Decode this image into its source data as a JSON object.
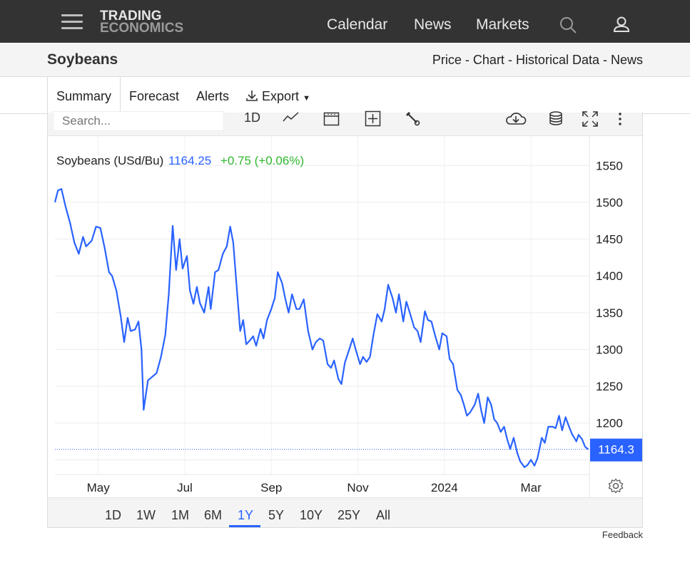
{
  "header": {
    "logo_line1": "TRADING",
    "logo_line2": "ECONOMICS",
    "nav": [
      "Calendar",
      "News",
      "Markets"
    ],
    "icons": [
      "menu-icon",
      "search-icon",
      "user-icon"
    ]
  },
  "title": "Soybeans",
  "breadcrumbs": {
    "price": "Price",
    "chart": "Chart",
    "historical": "Historical Data",
    "news": "News",
    "separator": "-"
  },
  "tabs": {
    "summary": "Summary",
    "forecast": "Forecast",
    "alerts": "Alerts",
    "export": "Export"
  },
  "toolbar": {
    "search_placeholder": "Search...",
    "interval": "1D",
    "icons": [
      "line-chart-icon",
      "calendar-icon",
      "add-compare-icon",
      "wrench-icon",
      "download-icon",
      "database-icon",
      "fullscreen-icon",
      "more-icon"
    ]
  },
  "legend": {
    "name": "Soybeans (USd/Bu)",
    "price": "1164.25",
    "change": "+0.75 (+0.06%)"
  },
  "colors": {
    "line": "#2962ff",
    "change": "#2eb82e",
    "price": "#2962ff",
    "navbar": "#333333"
  },
  "ranges": [
    "1D",
    "1W",
    "1M",
    "6M",
    "1Y",
    "5Y",
    "10Y",
    "25Y",
    "All"
  ],
  "active_range": "1Y",
  "feedback": "Feedback",
  "chart_data": {
    "type": "line",
    "title": "Soybeans (USd/Bu)",
    "ylim": [
      1130,
      1590
    ],
    "y_ticks": [
      1200,
      1250,
      1300,
      1350,
      1400,
      1450,
      1500,
      1550
    ],
    "x_ticks": [
      "May",
      "Jul",
      "Sep",
      "Nov",
      "2024",
      "Mar"
    ],
    "x_tick_months": [
      1.0,
      3.0,
      5.0,
      7.0,
      9.0,
      11.0
    ],
    "last_value_label": "1164.3",
    "last_value": 1164.3,
    "grid": true,
    "series": [
      {
        "name": "Soybeans",
        "points": [
          [
            0.0,
            1500
          ],
          [
            0.07,
            1516
          ],
          [
            0.15,
            1518
          ],
          [
            0.25,
            1493
          ],
          [
            0.35,
            1472
          ],
          [
            0.45,
            1445
          ],
          [
            0.55,
            1430
          ],
          [
            0.65,
            1453
          ],
          [
            0.72,
            1440
          ],
          [
            0.85,
            1448
          ],
          [
            0.95,
            1467
          ],
          [
            1.05,
            1465
          ],
          [
            1.15,
            1438
          ],
          [
            1.25,
            1405
          ],
          [
            1.32,
            1400
          ],
          [
            1.42,
            1380
          ],
          [
            1.52,
            1345
          ],
          [
            1.6,
            1310
          ],
          [
            1.68,
            1343
          ],
          [
            1.75,
            1325
          ],
          [
            1.85,
            1327
          ],
          [
            1.93,
            1338
          ],
          [
            2.0,
            1300
          ],
          [
            2.05,
            1218
          ],
          [
            2.15,
            1258
          ],
          [
            2.25,
            1263
          ],
          [
            2.35,
            1268
          ],
          [
            2.45,
            1290
          ],
          [
            2.55,
            1320
          ],
          [
            2.63,
            1375
          ],
          [
            2.72,
            1468
          ],
          [
            2.8,
            1408
          ],
          [
            2.88,
            1450
          ],
          [
            2.95,
            1410
          ],
          [
            3.05,
            1427
          ],
          [
            3.12,
            1380
          ],
          [
            3.2,
            1362
          ],
          [
            3.28,
            1385
          ],
          [
            3.35,
            1363
          ],
          [
            3.45,
            1350
          ],
          [
            3.55,
            1385
          ],
          [
            3.6,
            1355
          ],
          [
            3.7,
            1405
          ],
          [
            3.78,
            1408
          ],
          [
            3.88,
            1430
          ],
          [
            3.97,
            1440
          ],
          [
            4.05,
            1467
          ],
          [
            4.12,
            1445
          ],
          [
            4.2,
            1385
          ],
          [
            4.28,
            1325
          ],
          [
            4.35,
            1340
          ],
          [
            4.42,
            1307
          ],
          [
            4.5,
            1312
          ],
          [
            4.58,
            1318
          ],
          [
            4.65,
            1305
          ],
          [
            4.75,
            1328
          ],
          [
            4.82,
            1315
          ],
          [
            4.9,
            1340
          ],
          [
            5.0,
            1355
          ],
          [
            5.08,
            1370
          ],
          [
            5.15,
            1405
          ],
          [
            5.25,
            1390
          ],
          [
            5.32,
            1370
          ],
          [
            5.4,
            1350
          ],
          [
            5.48,
            1375
          ],
          [
            5.58,
            1355
          ],
          [
            5.65,
            1355
          ],
          [
            5.75,
            1368
          ],
          [
            5.85,
            1325
          ],
          [
            5.95,
            1300
          ],
          [
            6.03,
            1310
          ],
          [
            6.12,
            1315
          ],
          [
            6.2,
            1312
          ],
          [
            6.3,
            1280
          ],
          [
            6.38,
            1275
          ],
          [
            6.45,
            1285
          ],
          [
            6.55,
            1260
          ],
          [
            6.62,
            1253
          ],
          [
            6.7,
            1282
          ],
          [
            6.8,
            1300
          ],
          [
            6.88,
            1315
          ],
          [
            6.95,
            1300
          ],
          [
            7.05,
            1280
          ],
          [
            7.12,
            1290
          ],
          [
            7.2,
            1283
          ],
          [
            7.28,
            1290
          ],
          [
            7.36,
            1320
          ],
          [
            7.45,
            1348
          ],
          [
            7.55,
            1338
          ],
          [
            7.62,
            1355
          ],
          [
            7.7,
            1388
          ],
          [
            7.8,
            1370
          ],
          [
            7.88,
            1350
          ],
          [
            7.95,
            1375
          ],
          [
            8.05,
            1338
          ],
          [
            8.12,
            1365
          ],
          [
            8.2,
            1350
          ],
          [
            8.3,
            1330
          ],
          [
            8.38,
            1325
          ],
          [
            8.45,
            1310
          ],
          [
            8.55,
            1352
          ],
          [
            8.62,
            1340
          ],
          [
            8.7,
            1338
          ],
          [
            8.78,
            1320
          ],
          [
            8.88,
            1300
          ],
          [
            8.95,
            1322
          ],
          [
            9.05,
            1318
          ],
          [
            9.12,
            1287
          ],
          [
            9.2,
            1280
          ],
          [
            9.3,
            1245
          ],
          [
            9.38,
            1238
          ],
          [
            9.45,
            1225
          ],
          [
            9.52,
            1210
          ],
          [
            9.6,
            1215
          ],
          [
            9.7,
            1225
          ],
          [
            9.78,
            1240
          ],
          [
            9.85,
            1217
          ],
          [
            9.92,
            1200
          ],
          [
            10.0,
            1235
          ],
          [
            10.08,
            1225
          ],
          [
            10.15,
            1205
          ],
          [
            10.22,
            1200
          ],
          [
            10.3,
            1188
          ],
          [
            10.38,
            1195
          ],
          [
            10.45,
            1178
          ],
          [
            10.52,
            1165
          ],
          [
            10.6,
            1180
          ],
          [
            10.68,
            1160
          ],
          [
            10.75,
            1148
          ],
          [
            10.85,
            1140
          ],
          [
            10.92,
            1143
          ],
          [
            11.0,
            1150
          ],
          [
            11.08,
            1142
          ],
          [
            11.15,
            1152
          ],
          [
            11.25,
            1180
          ],
          [
            11.32,
            1173
          ],
          [
            11.4,
            1195
          ],
          [
            11.5,
            1195
          ],
          [
            11.57,
            1193
          ],
          [
            11.65,
            1210
          ],
          [
            11.72,
            1190
          ],
          [
            11.8,
            1208
          ],
          [
            11.88,
            1195
          ],
          [
            11.95,
            1185
          ],
          [
            12.05,
            1175
          ],
          [
            12.1,
            1184
          ],
          [
            12.18,
            1178
          ],
          [
            12.25,
            1168
          ],
          [
            12.32,
            1164.3
          ]
        ]
      }
    ]
  }
}
